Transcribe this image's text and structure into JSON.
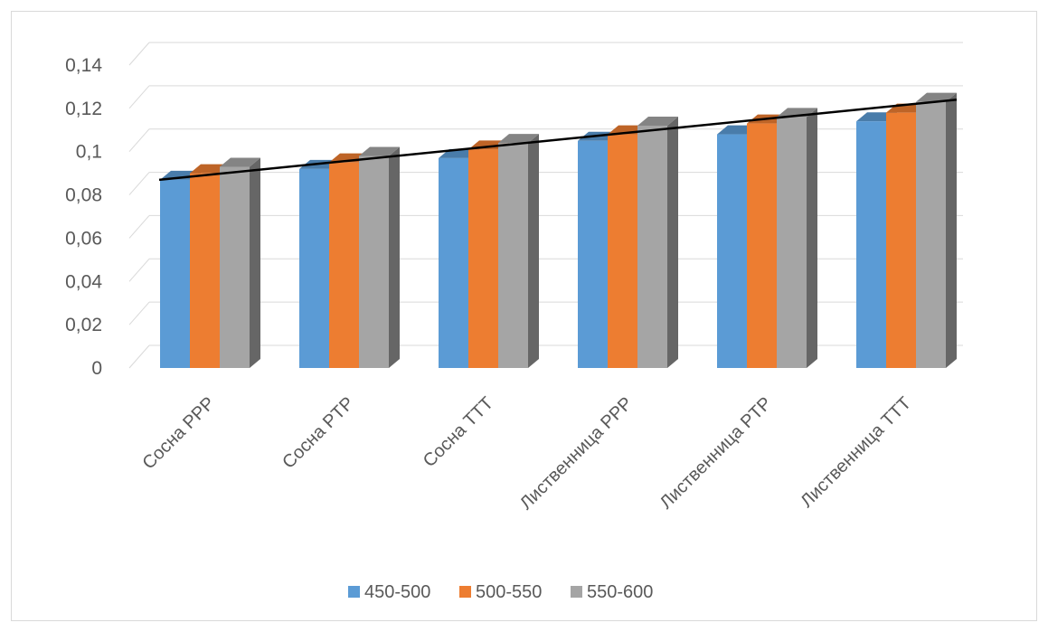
{
  "chart_data": {
    "type": "bar",
    "style": "3d-clustered-column",
    "categories": [
      "Сосна PPP",
      "Сосна PTP",
      "Сосна TTT",
      "Лиственница PPP",
      "Лиственница PTP",
      "Лиственница TTT"
    ],
    "series": [
      {
        "name": "450-500",
        "color": "#5b9bd5",
        "values": [
          0.087,
          0.092,
          0.097,
          0.105,
          0.108,
          0.114
        ]
      },
      {
        "name": "500-550",
        "color": "#ed7d31",
        "values": [
          0.09,
          0.095,
          0.101,
          0.108,
          0.113,
          0.118
        ]
      },
      {
        "name": "550-600",
        "color": "#a5a5a5",
        "values": [
          0.093,
          0.098,
          0.104,
          0.112,
          0.116,
          0.123
        ]
      }
    ],
    "yticks": [
      "0",
      "0,02",
      "0,04",
      "0,06",
      "0,08",
      "0,1",
      "0,12",
      "0,14"
    ],
    "ylim": [
      0,
      0.14
    ],
    "grid": true,
    "legend_position": "bottom",
    "trendline": {
      "color": "#000000",
      "start": 0.087,
      "end": 0.124
    },
    "title": "",
    "xlabel": "",
    "ylabel": ""
  }
}
